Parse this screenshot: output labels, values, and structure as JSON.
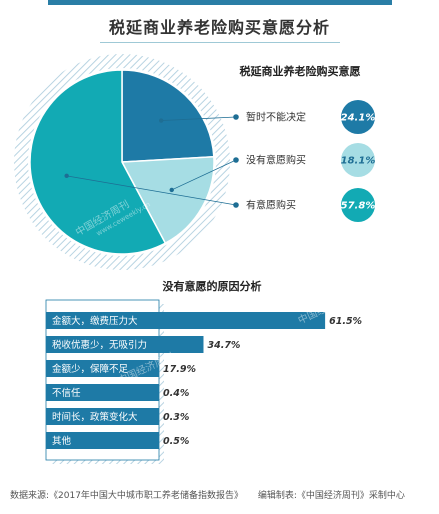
{
  "page": {
    "title": "税延商业养老险购买意愿分析",
    "watermark": "中国经济周刊",
    "watermark_url": "www.ceweekly.cn",
    "footer_source": "数据来源:《2017年中国大中城市职工养老储备指数报告》",
    "footer_editor": "编辑制表:《中国经济周刊》采制中心"
  },
  "chart_data": [
    {
      "type": "pie",
      "title": "税延商业养老险购买意愿",
      "series": [
        {
          "name": "暂时不能决定",
          "value": 24.1,
          "label": "24.1%",
          "color": "#1e7aa6"
        },
        {
          "name": "没有意愿购买",
          "value": 18.1,
          "label": "18.1%",
          "color": "#a6dde4"
        },
        {
          "name": "有意愿购买",
          "value": 57.8,
          "label": "57.8%",
          "color": "#12aab4"
        }
      ]
    },
    {
      "type": "bar",
      "orientation": "horizontal",
      "title": "没有意愿的原因分析",
      "categories": [
        "金额大，缴费压力大",
        "税收优惠少，无吸引力",
        "金额少，保障不足",
        "不信任",
        "时间长，政策变化大",
        "其他"
      ],
      "values": [
        61.5,
        34.7,
        17.9,
        0.4,
        0.3,
        0.5
      ],
      "labels": [
        "61.5%",
        "34.7%",
        "17.9%",
        "0.4%",
        "0.3%",
        "0.5%"
      ],
      "bar_color": "#1e7aa6"
    }
  ]
}
